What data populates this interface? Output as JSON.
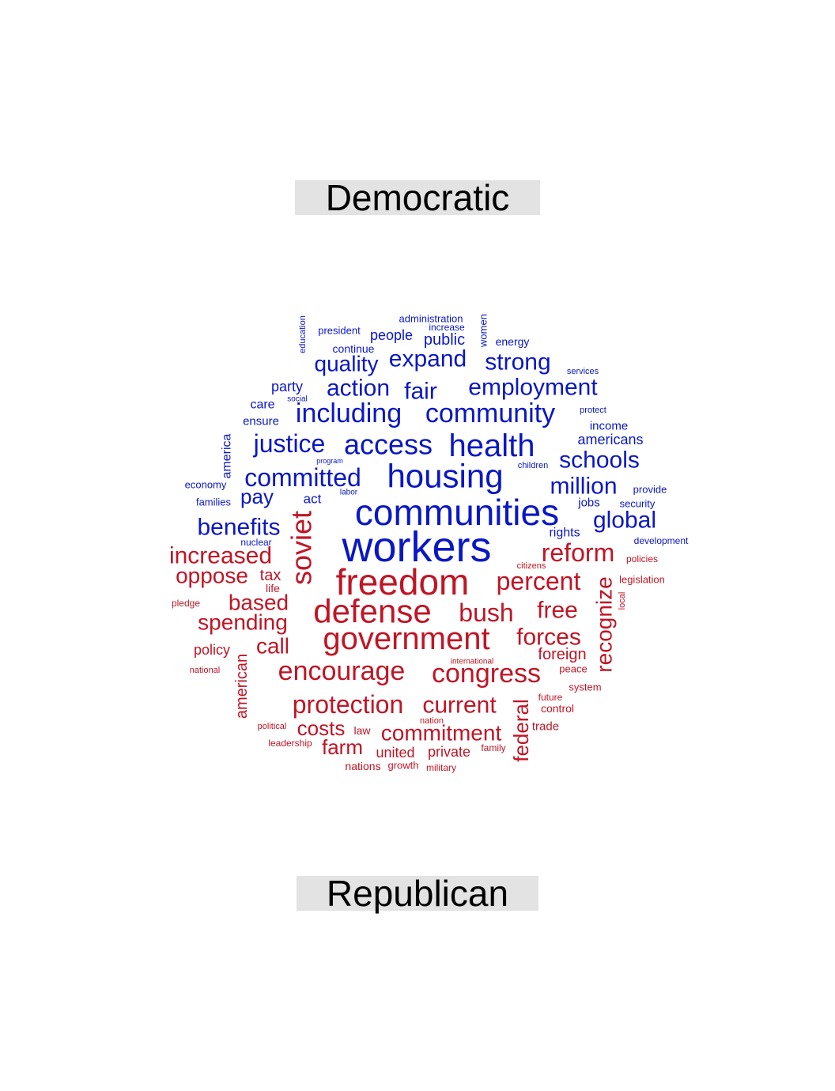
{
  "labels": {
    "top": "Democratic",
    "bottom": "Republican"
  },
  "colors": {
    "democratic": "#0a17c4",
    "republican": "#c01525"
  },
  "words": [
    {
      "text": "administration",
      "party": "democratic",
      "rotated": false
    },
    {
      "text": "increase",
      "party": "democratic",
      "rotated": false
    },
    {
      "text": "president",
      "party": "democratic",
      "rotated": false
    },
    {
      "text": "people",
      "party": "democratic",
      "rotated": false
    },
    {
      "text": "public",
      "party": "democratic",
      "rotated": false
    },
    {
      "text": "women",
      "party": "democratic",
      "rotated": true
    },
    {
      "text": "education",
      "party": "democratic",
      "rotated": true
    },
    {
      "text": "energy",
      "party": "democratic",
      "rotated": false
    },
    {
      "text": "continue",
      "party": "democratic",
      "rotated": false
    },
    {
      "text": "quality",
      "party": "democratic",
      "rotated": false
    },
    {
      "text": "expand",
      "party": "democratic",
      "rotated": false
    },
    {
      "text": "strong",
      "party": "democratic",
      "rotated": false
    },
    {
      "text": "services",
      "party": "democratic",
      "rotated": false
    },
    {
      "text": "party",
      "party": "democratic",
      "rotated": false
    },
    {
      "text": "action",
      "party": "democratic",
      "rotated": false
    },
    {
      "text": "fair",
      "party": "democratic",
      "rotated": false
    },
    {
      "text": "employment",
      "party": "democratic",
      "rotated": false
    },
    {
      "text": "social",
      "party": "democratic",
      "rotated": false
    },
    {
      "text": "care",
      "party": "democratic",
      "rotated": false
    },
    {
      "text": "including",
      "party": "democratic",
      "rotated": false
    },
    {
      "text": "community",
      "party": "democratic",
      "rotated": false
    },
    {
      "text": "protect",
      "party": "democratic",
      "rotated": false
    },
    {
      "text": "ensure",
      "party": "democratic",
      "rotated": false
    },
    {
      "text": "income",
      "party": "democratic",
      "rotated": false
    },
    {
      "text": "justice",
      "party": "democratic",
      "rotated": false
    },
    {
      "text": "access",
      "party": "democratic",
      "rotated": false
    },
    {
      "text": "health",
      "party": "democratic",
      "rotated": false
    },
    {
      "text": "americans",
      "party": "democratic",
      "rotated": false
    },
    {
      "text": "america",
      "party": "democratic",
      "rotated": true
    },
    {
      "text": "program",
      "party": "democratic",
      "rotated": false
    },
    {
      "text": "schools",
      "party": "democratic",
      "rotated": false
    },
    {
      "text": "children",
      "party": "democratic",
      "rotated": false
    },
    {
      "text": "committed",
      "party": "democratic",
      "rotated": false
    },
    {
      "text": "housing",
      "party": "democratic",
      "rotated": false
    },
    {
      "text": "economy",
      "party": "democratic",
      "rotated": false
    },
    {
      "text": "million",
      "party": "democratic",
      "rotated": false
    },
    {
      "text": "provide",
      "party": "democratic",
      "rotated": false
    },
    {
      "text": "labor",
      "party": "democratic",
      "rotated": false
    },
    {
      "text": "families",
      "party": "democratic",
      "rotated": false
    },
    {
      "text": "pay",
      "party": "democratic",
      "rotated": false
    },
    {
      "text": "act",
      "party": "democratic",
      "rotated": false
    },
    {
      "text": "jobs",
      "party": "democratic",
      "rotated": false
    },
    {
      "text": "security",
      "party": "democratic",
      "rotated": false
    },
    {
      "text": "communities",
      "party": "democratic",
      "rotated": false
    },
    {
      "text": "global",
      "party": "democratic",
      "rotated": false
    },
    {
      "text": "benefits",
      "party": "democratic",
      "rotated": false
    },
    {
      "text": "rights",
      "party": "democratic",
      "rotated": false
    },
    {
      "text": "nuclear",
      "party": "democratic",
      "rotated": false
    },
    {
      "text": "development",
      "party": "democratic",
      "rotated": false
    },
    {
      "text": "workers",
      "party": "democratic",
      "rotated": false
    },
    {
      "text": "soviet",
      "party": "republican",
      "rotated": true
    },
    {
      "text": "increased",
      "party": "republican",
      "rotated": false
    },
    {
      "text": "reform",
      "party": "republican",
      "rotated": false
    },
    {
      "text": "policies",
      "party": "republican",
      "rotated": false
    },
    {
      "text": "citizens",
      "party": "republican",
      "rotated": false
    },
    {
      "text": "oppose",
      "party": "republican",
      "rotated": false
    },
    {
      "text": "tax",
      "party": "republican",
      "rotated": false
    },
    {
      "text": "freedom",
      "party": "republican",
      "rotated": false
    },
    {
      "text": "percent",
      "party": "republican",
      "rotated": false
    },
    {
      "text": "recognize",
      "party": "republican",
      "rotated": true
    },
    {
      "text": "legislation",
      "party": "republican",
      "rotated": false
    },
    {
      "text": "life",
      "party": "republican",
      "rotated": false
    },
    {
      "text": "local",
      "party": "republican",
      "rotated": true
    },
    {
      "text": "pledge",
      "party": "republican",
      "rotated": false
    },
    {
      "text": "based",
      "party": "republican",
      "rotated": false
    },
    {
      "text": "defense",
      "party": "republican",
      "rotated": false
    },
    {
      "text": "bush",
      "party": "republican",
      "rotated": false
    },
    {
      "text": "free",
      "party": "republican",
      "rotated": false
    },
    {
      "text": "spending",
      "party": "republican",
      "rotated": false
    },
    {
      "text": "government",
      "party": "republican",
      "rotated": false
    },
    {
      "text": "forces",
      "party": "republican",
      "rotated": false
    },
    {
      "text": "call",
      "party": "republican",
      "rotated": false
    },
    {
      "text": "policy",
      "party": "republican",
      "rotated": false
    },
    {
      "text": "foreign",
      "party": "republican",
      "rotated": false
    },
    {
      "text": "international",
      "party": "republican",
      "rotated": false
    },
    {
      "text": "american",
      "party": "republican",
      "rotated": true
    },
    {
      "text": "national",
      "party": "republican",
      "rotated": false
    },
    {
      "text": "encourage",
      "party": "republican",
      "rotated": false
    },
    {
      "text": "congress",
      "party": "republican",
      "rotated": false
    },
    {
      "text": "peace",
      "party": "republican",
      "rotated": false
    },
    {
      "text": "system",
      "party": "republican",
      "rotated": false
    },
    {
      "text": "protection",
      "party": "republican",
      "rotated": false
    },
    {
      "text": "current",
      "party": "republican",
      "rotated": false
    },
    {
      "text": "federal",
      "party": "republican",
      "rotated": true
    },
    {
      "text": "future",
      "party": "republican",
      "rotated": false
    },
    {
      "text": "control",
      "party": "republican",
      "rotated": false
    },
    {
      "text": "nation",
      "party": "republican",
      "rotated": false
    },
    {
      "text": "political",
      "party": "republican",
      "rotated": false
    },
    {
      "text": "costs",
      "party": "republican",
      "rotated": false
    },
    {
      "text": "law",
      "party": "republican",
      "rotated": false
    },
    {
      "text": "commitment",
      "party": "republican",
      "rotated": false
    },
    {
      "text": "trade",
      "party": "republican",
      "rotated": false
    },
    {
      "text": "leadership",
      "party": "republican",
      "rotated": false
    },
    {
      "text": "farm",
      "party": "republican",
      "rotated": false
    },
    {
      "text": "united",
      "party": "republican",
      "rotated": false
    },
    {
      "text": "private",
      "party": "republican",
      "rotated": false
    },
    {
      "text": "family",
      "party": "republican",
      "rotated": false
    },
    {
      "text": "nations",
      "party": "republican",
      "rotated": false
    },
    {
      "text": "growth",
      "party": "republican",
      "rotated": false
    },
    {
      "text": "military",
      "party": "republican",
      "rotated": false
    }
  ]
}
